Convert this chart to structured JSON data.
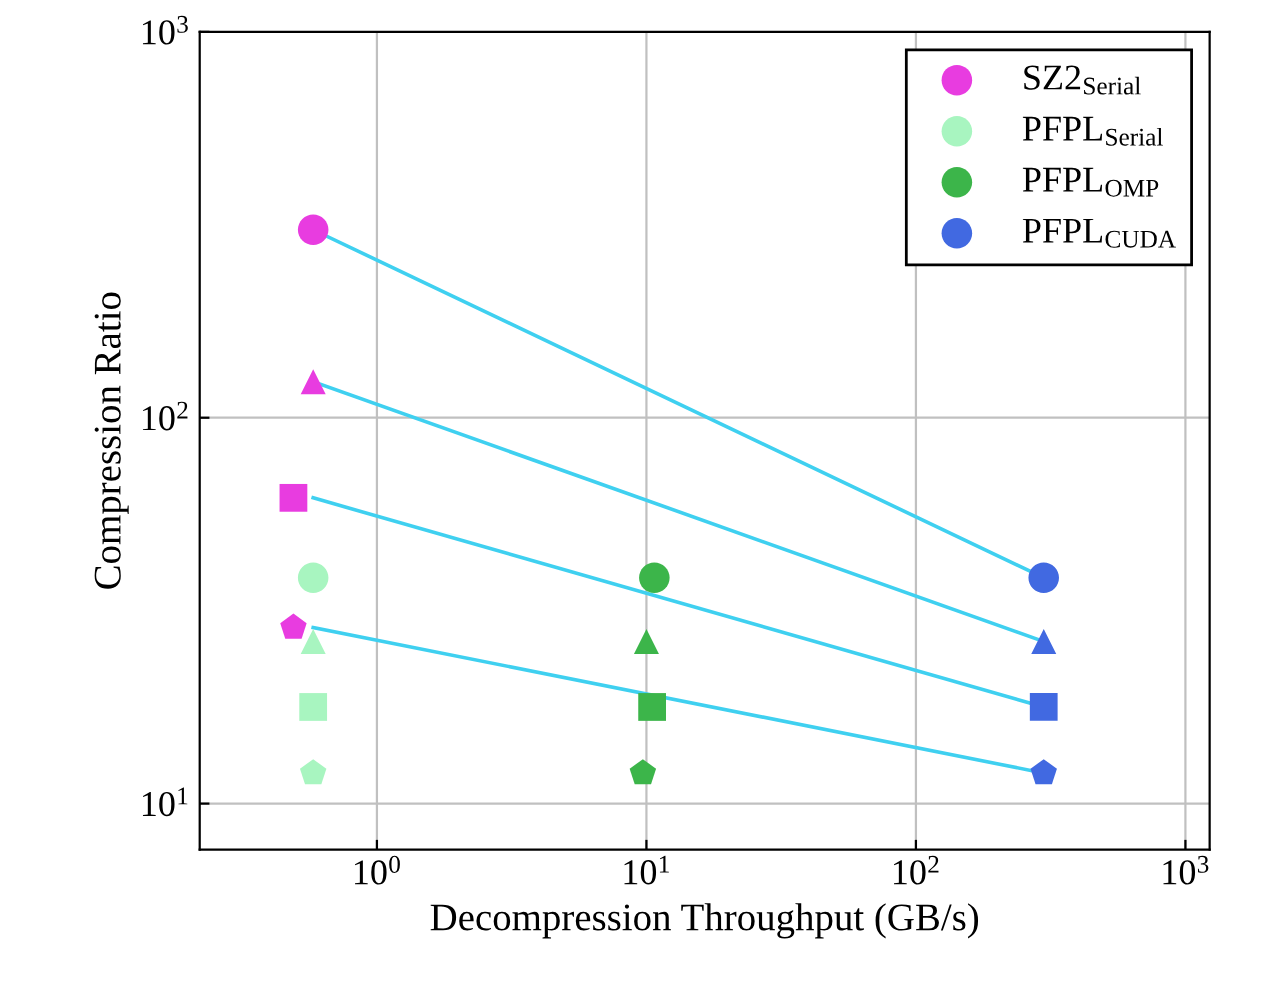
{
  "chart_data": {
    "type": "scatter",
    "xlabel": "Decompression Throughput (GB/s)",
    "ylabel": "Compression Ratio",
    "log": "xy",
    "grid": true,
    "legend": "top right",
    "xlim": [
      0.22,
      1230
    ],
    "ylim": [
      7.6,
      1000
    ],
    "xticks": [
      {
        "value": 1,
        "label": "10$^{0}$"
      },
      {
        "value": 10,
        "label": "10$^{1}$"
      },
      {
        "value": 100,
        "label": "10$^{2}$"
      },
      {
        "value": 1000,
        "label": "10$^{3}$"
      }
    ],
    "yticks": [
      {
        "value": 10,
        "label": "10$^{1}$"
      },
      {
        "value": 100,
        "label": "10$^{2}$"
      },
      {
        "value": 1000,
        "label": "10$^{3}$"
      }
    ],
    "series": [
      {
        "type": "line",
        "color": "#3fd0f0",
        "marker": "none",
        "x": [
          0.58,
          298
        ],
        "values": [
          307,
          38.5
        ]
      },
      {
        "type": "line",
        "color": "#3fd0f0",
        "marker": "none",
        "x": [
          0.58,
          298
        ],
        "values": [
          124,
          26.3
        ]
      },
      {
        "type": "line",
        "color": "#3fd0f0",
        "marker": "none",
        "x": [
          0.58,
          298
        ],
        "values": [
          62,
          17.8
        ]
      },
      {
        "type": "line",
        "color": "#3fd0f0",
        "marker": "none",
        "x": [
          0.58,
          298
        ],
        "values": [
          28.6,
          12.0
        ]
      },
      {
        "name": "SZ2$_{Serial}$",
        "color": "#e83ce0",
        "marker": "circle",
        "x": [
          0.58
        ],
        "values": [
          307
        ]
      },
      {
        "color": "#e83ce0",
        "marker": "triangle",
        "x": [
          0.58
        ],
        "values": [
          124
        ]
      },
      {
        "color": "#e83ce0",
        "marker": "square",
        "x": [
          0.49
        ],
        "values": [
          62
        ]
      },
      {
        "color": "#e83ce0",
        "x": [
          0.49
        ],
        "values": [
          28.6
        ]
      },
      {
        "name": "PFPL$_{Serial}$",
        "color": "#a8f5c0",
        "marker": "circle",
        "x": [
          0.58
        ],
        "values": [
          38.5
        ]
      },
      {
        "color": "#a8f5c0",
        "marker": "triangle",
        "x": [
          0.58
        ],
        "values": [
          26.3
        ]
      },
      {
        "color": "#a8f5c0",
        "marker": "square",
        "x": [
          0.58
        ],
        "values": [
          17.8
        ]
      },
      {
        "color": "#a8f5c0",
        "x": [
          0.58
        ],
        "values": [
          12.0
        ]
      },
      {
        "name": "PFPL$_{OMP}$",
        "color": "#3cb54a",
        "marker": "circle",
        "x": [
          10.7
        ],
        "values": [
          38.5
        ]
      },
      {
        "color": "#3cb54a",
        "marker": "triangle",
        "x": [
          10
        ],
        "values": [
          26.3
        ]
      },
      {
        "color": "#3cb54a",
        "marker": "square",
        "x": [
          10.5
        ],
        "values": [
          17.8
        ]
      },
      {
        "color": "#3cb54a",
        "x": [
          9.7
        ],
        "values": [
          12.0
        ]
      },
      {
        "name": "PFPL$_{CUDA}$",
        "color": "#4169e1",
        "marker": "circle",
        "x": [
          298
        ],
        "values": [
          38.5
        ]
      },
      {
        "color": "#4169e1",
        "marker": "triangle",
        "x": [
          298
        ],
        "values": [
          26.3
        ]
      },
      {
        "color": "#4169e1",
        "marker": "square",
        "x": [
          298
        ],
        "values": [
          17.8
        ]
      },
      {
        "color": "#4169e1",
        "x": [
          298
        ],
        "values": [
          12.0
        ]
      }
    ]
  }
}
